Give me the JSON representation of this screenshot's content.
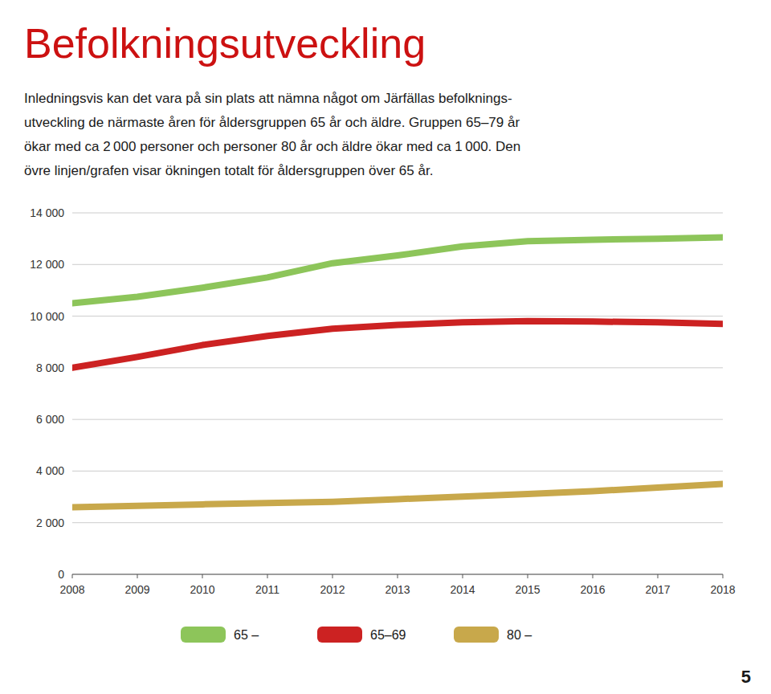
{
  "chart_data": {
    "type": "line",
    "title": "Befolkningsutveckling",
    "annotations": [
      "Inledningsvis kan det vara på sin plats att nämna något om Järfällas befolknings-",
      "utveckling de närmaste åren för åldersgruppen 65 år och äldre. Gruppen 65–79 år",
      "ökar med ca 2 000 personer och personer 80 år och äldre ökar med ca 1 000. Den",
      "övre linjen/grafen visar ökningen totalt för åldersgruppen över 65 år.",
      "5"
    ],
    "x": [
      2008,
      2009,
      2010,
      2011,
      2012,
      2013,
      2014,
      2015,
      2016,
      2017,
      2018
    ],
    "series": [
      {
        "name": "65 –",
        "color": "#8dc55a",
        "values": [
          10500,
          10750,
          11100,
          11500,
          12050,
          12350,
          12700,
          12900,
          12960,
          13000,
          13050
        ]
      },
      {
        "name": "65–69",
        "color": "#cc2222",
        "values": [
          8000,
          8420,
          8880,
          9230,
          9510,
          9660,
          9760,
          9810,
          9790,
          9760,
          9700
        ]
      },
      {
        "name": "80 –",
        "color": "#c8a84b",
        "values": [
          2600,
          2650,
          2710,
          2760,
          2810,
          2910,
          3010,
          3110,
          3220,
          3360,
          3500
        ]
      }
    ],
    "xlim": [
      2008,
      2018
    ],
    "xticks": [
      2008,
      2009,
      2010,
      2011,
      2012,
      2013,
      2014,
      2015,
      2016,
      2017,
      2018
    ],
    "ylim": [
      0,
      14000
    ],
    "yticks": [
      0,
      {
        "value": 2000,
        "label": "2 000"
      },
      {
        "value": 4000,
        "label": "4 000"
      },
      {
        "value": 6000,
        "label": "6 000"
      },
      {
        "value": 8000,
        "label": "8 000"
      },
      {
        "value": 10000,
        "label": "10 000"
      },
      {
        "value": 12000,
        "label": "12 000"
      },
      {
        "value": 14000,
        "label": "14 000"
      }
    ],
    "grid": true,
    "legend": "bottom"
  }
}
